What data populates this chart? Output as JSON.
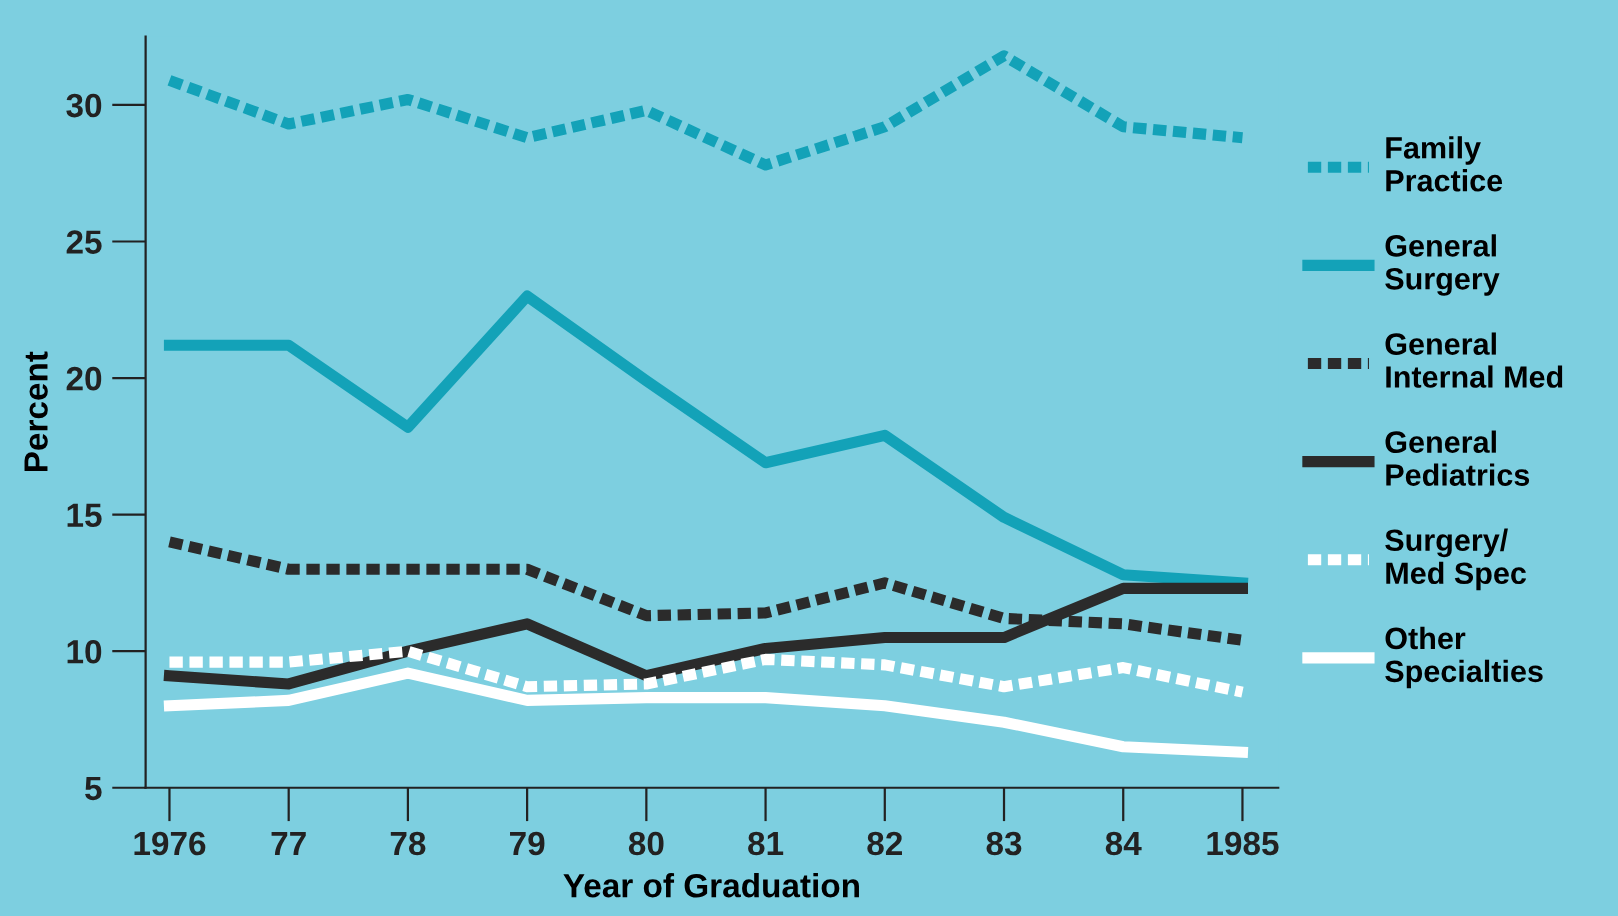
{
  "chart_data": {
    "type": "line",
    "xlabel": "Year of Graduation",
    "ylabel": "Percent",
    "x": [
      1976,
      1977,
      1978,
      1979,
      1980,
      1981,
      1982,
      1983,
      1984,
      1985
    ],
    "xlim": [
      1975.8,
      1985.3
    ],
    "ylim": [
      5,
      32.5
    ],
    "xticks": [
      {
        "value": 1976,
        "label": "1976"
      },
      {
        "value": 1977,
        "label": "77"
      },
      {
        "value": 1978,
        "label": "78"
      },
      {
        "value": 1979,
        "label": "79"
      },
      {
        "value": 1980,
        "label": "80"
      },
      {
        "value": 1981,
        "label": "81"
      },
      {
        "value": 1982,
        "label": "82"
      },
      {
        "value": 1983,
        "label": "83"
      },
      {
        "value": 1984,
        "label": "84"
      },
      {
        "value": 1985,
        "label": "1985"
      }
    ],
    "yticks": [
      5,
      10,
      15,
      20,
      25,
      30
    ],
    "grid": false,
    "legend": "right",
    "marker": "none",
    "series": [
      {
        "name": "Family\nPractice",
        "color": "#13a2b8",
        "line_style": "dashed",
        "values": [
          30.9,
          29.3,
          30.2,
          28.8,
          29.8,
          27.8,
          29.2,
          31.8,
          29.2,
          28.8
        ]
      },
      {
        "name": "General\nSurgery",
        "color": "#13a2b8",
        "line_style": "solid",
        "values": [
          21.2,
          21.2,
          18.2,
          23.0,
          19.9,
          16.9,
          17.9,
          14.9,
          12.8,
          12.5
        ]
      },
      {
        "name": "General\nInternal Med",
        "color": "#2b2b2b",
        "line_style": "dashed",
        "values": [
          14.0,
          13.0,
          13.0,
          13.0,
          11.3,
          11.4,
          12.5,
          11.2,
          11.0,
          10.4
        ]
      },
      {
        "name": "General\nPediatrics",
        "color": "#2b2b2b",
        "line_style": "solid",
        "values": [
          9.1,
          8.8,
          10.0,
          11.0,
          9.1,
          10.1,
          10.5,
          10.5,
          12.3,
          12.3
        ]
      },
      {
        "name": "Surgery/\nMed Spec",
        "color": "#ffffff",
        "line_style": "dashed",
        "values": [
          9.6,
          9.6,
          10.0,
          8.7,
          8.8,
          9.7,
          9.5,
          8.7,
          9.4,
          8.5
        ]
      },
      {
        "name": "Other\nSpecialties",
        "color": "#ffffff",
        "line_style": "solid",
        "values": [
          8.0,
          8.2,
          9.2,
          8.2,
          8.3,
          8.3,
          8.0,
          7.4,
          6.5,
          6.3
        ]
      }
    ]
  }
}
